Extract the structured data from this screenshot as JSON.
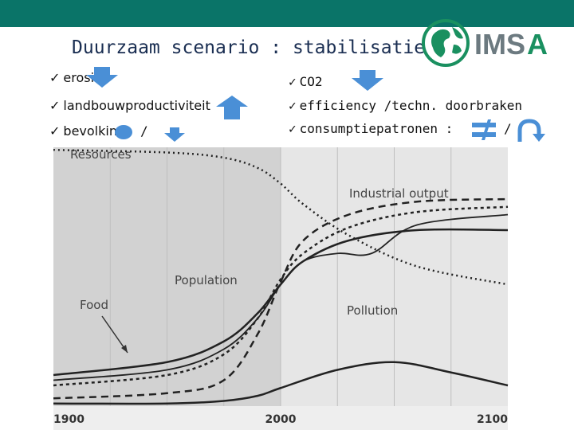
{
  "header": {
    "title": "Duurzaam scenario : stabilisatie",
    "logo_text": "IMSA"
  },
  "left_bullets": [
    {
      "check": "✓",
      "label": "erosie",
      "trend": "down"
    },
    {
      "check": "✓",
      "label": "landbouwproductiviteit",
      "trend": "up"
    },
    {
      "check": "✓",
      "label": "bevolking",
      "trend": "stable-then-down",
      "separator": "/"
    }
  ],
  "right_bullets": [
    {
      "check": "✓",
      "label": "CO2",
      "trend": "down"
    },
    {
      "check": "✓",
      "label": "efficiency /techn. doorbraken",
      "trend": "none"
    },
    {
      "check": "✓",
      "label": "consumptiepatronen :",
      "trend": "equal-or-shift",
      "separator": "/"
    }
  ],
  "colors": {
    "topbar": "#0a7468",
    "arrow": "#4a8fd6",
    "title": "#1a2e52",
    "logo_green": "#1a9060",
    "logo_grey": "#6c7a80"
  },
  "chart_data": {
    "type": "line",
    "title": "",
    "xlabel": "",
    "ylabel": "",
    "xlim": [
      1900,
      2100
    ],
    "ylim": [
      0,
      1
    ],
    "x_ticks": [
      "1900",
      "2000",
      "2100"
    ],
    "shaded_region": [
      1900,
      2000
    ],
    "series": [
      {
        "name": "Resources",
        "style": "dotted",
        "x": [
          1900,
          1950,
          1975,
          1990,
          2000,
          2010,
          2030,
          2060,
          2100
        ],
        "y": [
          0.99,
          0.98,
          0.96,
          0.92,
          0.86,
          0.78,
          0.66,
          0.54,
          0.47
        ]
      },
      {
        "name": "Industrial output",
        "style": "dashed",
        "x": [
          1900,
          1950,
          1975,
          1990,
          2000,
          2010,
          2030,
          2060,
          2100
        ],
        "y": [
          0.03,
          0.05,
          0.1,
          0.28,
          0.48,
          0.64,
          0.74,
          0.79,
          0.8
        ]
      },
      {
        "name": "Population",
        "style": "solid",
        "x": [
          1900,
          1950,
          1975,
          1990,
          2000,
          2010,
          2030,
          2060,
          2100
        ],
        "y": [
          0.12,
          0.17,
          0.25,
          0.36,
          0.47,
          0.56,
          0.64,
          0.68,
          0.68
        ]
      },
      {
        "name": "Food",
        "style": "solid-thin",
        "x": [
          1900,
          1950,
          1975,
          1990,
          2000,
          2010,
          2025,
          2040,
          2060,
          2100
        ],
        "y": [
          0.1,
          0.14,
          0.22,
          0.34,
          0.47,
          0.56,
          0.59,
          0.59,
          0.7,
          0.74
        ]
      },
      {
        "name": "Pollution",
        "style": "solid",
        "x": [
          1900,
          1950,
          1975,
          1990,
          2000,
          2025,
          2050,
          2075,
          2100
        ],
        "y": [
          0.01,
          0.01,
          0.02,
          0.04,
          0.07,
          0.14,
          0.17,
          0.13,
          0.08
        ]
      }
    ],
    "series_extra": [
      {
        "name": "",
        "style": "dashed-short",
        "x": [
          1900,
          1950,
          1975,
          1990,
          2000,
          2010,
          2030,
          2060,
          2100
        ],
        "y": [
          0.08,
          0.12,
          0.2,
          0.34,
          0.49,
          0.59,
          0.69,
          0.75,
          0.77
        ]
      }
    ]
  }
}
